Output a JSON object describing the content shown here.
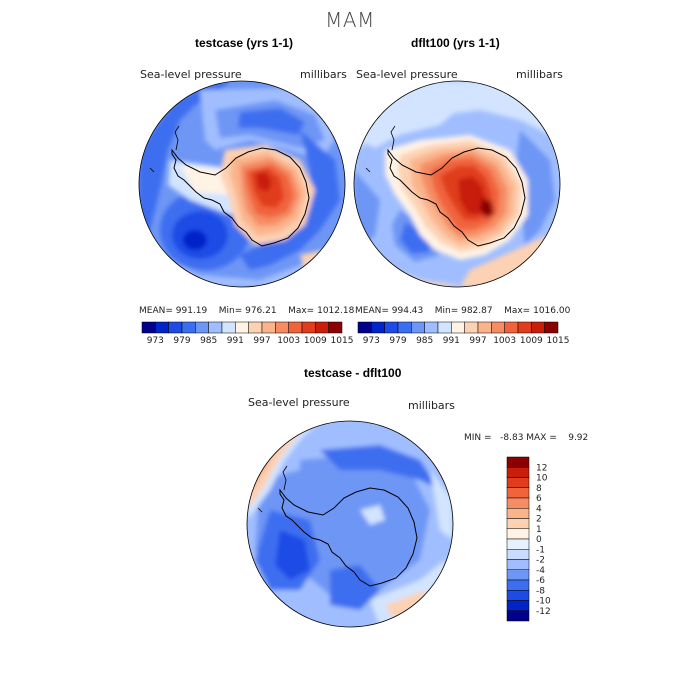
{
  "main_title": "MAM",
  "panels": [
    {
      "title": "testcase (yrs 1-1)",
      "variable": "Sea-level pressure",
      "units": "millibars",
      "stats": {
        "mean_label": "MEAN=",
        "mean": "991.19",
        "min_label": "Min=",
        "min": "976.21",
        "max_label": "Max=",
        "max": "1012.18"
      }
    },
    {
      "title": "dflt100 (yrs 1-1)",
      "variable": "Sea-level pressure",
      "units": "millibars",
      "stats": {
        "mean_label": "MEAN=",
        "mean": "994.43",
        "min_label": "Min=",
        "min": "982.87",
        "max_label": "Max=",
        "max": "1016.00"
      }
    },
    {
      "title": "testcase - dflt100",
      "variable": "Sea-level pressure",
      "units": "millibars",
      "stats_text": "MIN =   -8.83 MAX =    9.92"
    }
  ],
  "colorbar_top": {
    "labels": [
      "973",
      "979",
      "985",
      "991",
      "997",
      "1003",
      "1009",
      "1015"
    ],
    "colors": [
      "#00008c",
      "#0024c8",
      "#1e4be6",
      "#3c6ef0",
      "#6e96f5",
      "#a0beff",
      "#d2e4ff",
      "#fff3e6",
      "#fdd2b4",
      "#fab48c",
      "#f58c64",
      "#f0643c",
      "#e03c1e",
      "#c81e0a",
      "#8c0000"
    ]
  },
  "colorbar_diff": {
    "labels": [
      "12",
      "10",
      "8",
      "6",
      "4",
      "2",
      "1",
      "0",
      "-1",
      "-2",
      "-4",
      "-6",
      "-8",
      "-10",
      "-12"
    ],
    "colors": [
      "#8c0000",
      "#c81e0a",
      "#e03c1e",
      "#f0643c",
      "#f58c64",
      "#fab48c",
      "#fdd2b4",
      "#fff3e6",
      "#e6f0ff",
      "#c8dcff",
      "#a0beff",
      "#6e96f5",
      "#3c6ef0",
      "#1e4be6",
      "#0024c8",
      "#00008c"
    ]
  }
}
